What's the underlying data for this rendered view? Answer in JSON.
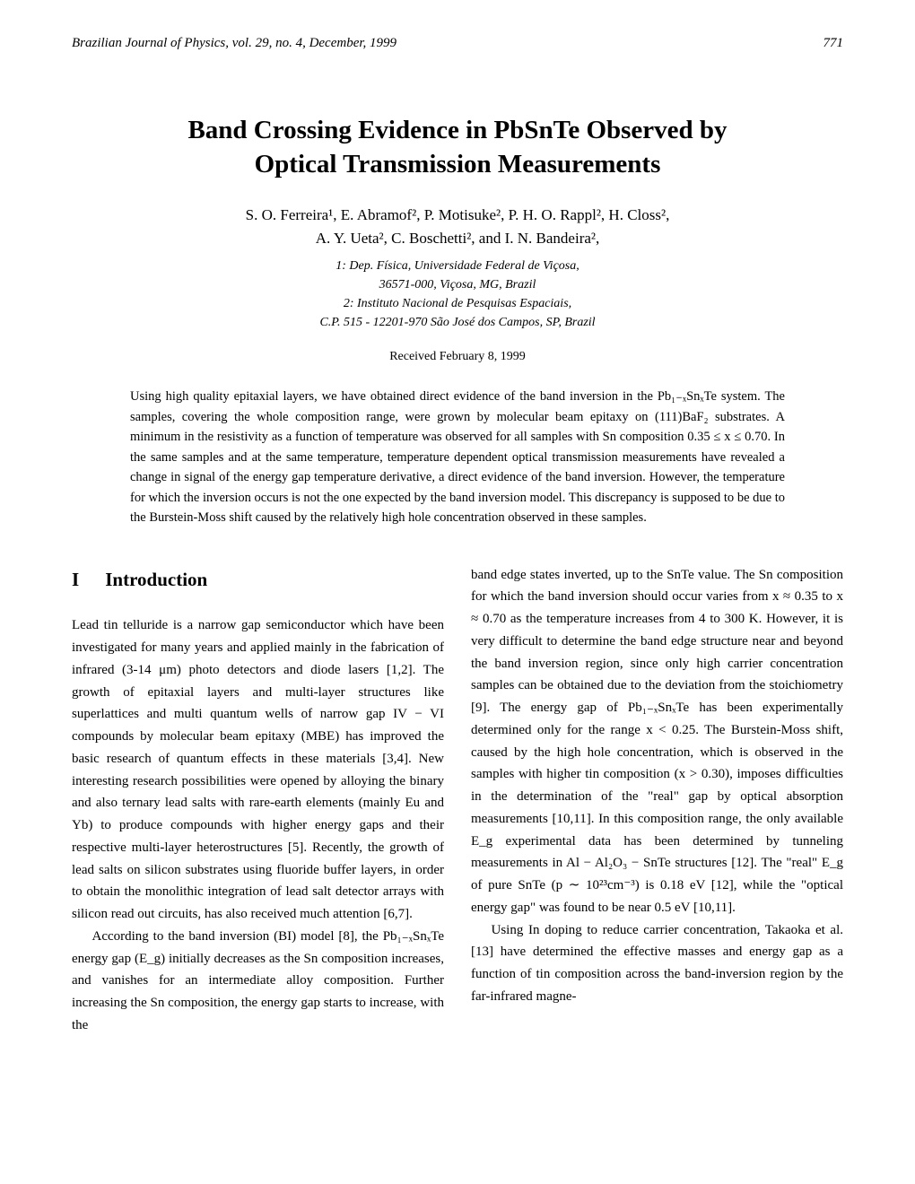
{
  "header": {
    "journal": "Brazilian Journal of Physics, vol. 29, no. 4, December, 1999",
    "page": "771"
  },
  "title_line1": "Band Crossing Evidence in PbSnTe Observed by",
  "title_line2": "Optical Transmission Measurements",
  "authors_line1": "S. O. Ferreira¹, E. Abramof², P. Motisuke², P. H. O. Rappl², H. Closs²,",
  "authors_line2": "A. Y. Ueta², C. Boschetti², and I. N. Bandeira²,",
  "aff1": "1: Dep. Física, Universidade Federal de Viçosa,",
  "aff2": "36571-000, Viçosa, MG, Brazil",
  "aff3": "2: Instituto Nacional de Pesquisas Espaciais,",
  "aff4": "C.P. 515 - 12201-970 São José dos Campos, SP, Brazil",
  "received": "Received February 8, 1999",
  "abstract": "Using high quality epitaxial layers, we have obtained direct evidence of the band inversion in the Pb₁₋ₓSnₓTe system. The samples, covering the whole composition range, were grown by molecular beam epitaxy on (111)BaF₂ substrates. A minimum in the resistivity as a function of temperature was observed for all samples with Sn composition 0.35 ≤ x ≤ 0.70. In the same samples and at the same temperature, temperature dependent optical transmission measurements have revealed a change in signal of the energy gap temperature derivative, a direct evidence of the band inversion. However, the temperature for which the inversion occurs is not the one expected by the band inversion model. This discrepancy is supposed to be due to the Burstein-Moss shift caused by the relatively high hole concentration observed in these samples.",
  "section": {
    "num": "I",
    "title": "Introduction"
  },
  "col1_p1": "Lead tin telluride is a narrow gap semiconductor which have been investigated for many years and applied mainly in the fabrication of infrared (3-14 μm) photo detectors and diode lasers [1,2]. The growth of epitaxial layers and multi-layer structures like superlattices and multi quantum wells of narrow gap IV − VI compounds by molecular beam epitaxy (MBE) has improved the basic research of quantum effects in these materials [3,4]. New interesting research possibilities were opened by alloying the binary and also ternary lead salts with rare-earth elements (mainly Eu and Yb) to produce compounds with higher energy gaps and their respective multi-layer heterostructures [5]. Recently, the growth of lead salts on silicon substrates using fluoride buffer layers, in order to obtain the monolithic integration of lead salt detector arrays with silicon read out circuits, has also received much attention [6,7].",
  "col1_p2": "According to the band inversion (BI) model [8], the Pb₁₋ₓSnₓTe energy gap (E_g) initially decreases as the Sn composition increases, and vanishes for an intermediate alloy composition. Further increasing the Sn composition, the energy gap starts to increase, with the",
  "col2_p1": "band edge states inverted, up to the SnTe value. The Sn composition for which the band inversion should occur varies from x ≈ 0.35 to x ≈ 0.70 as the temperature increases from 4 to 300 K. However, it is very difficult to determine the band edge structure near and beyond the band inversion region, since only high carrier concentration samples can be obtained due to the deviation from the stoichiometry [9]. The energy gap of Pb₁₋ₓSnₓTe has been experimentally determined only for the range x < 0.25. The Burstein-Moss shift, caused by the high hole concentration, which is observed in the samples with higher tin composition (x > 0.30), imposes difficulties in the determination of the \"real\" gap by optical absorption measurements [10,11]. In this composition range, the only available E_g experimental data has been determined by tunneling measurements in Al − Al₂O₃ − SnTe structures [12]. The \"real\" E_g of pure SnTe (p ∼ 10²³cm⁻³) is 0.18 eV [12], while the \"optical energy gap\" was found to be near 0.5 eV [10,11].",
  "col2_p2": "Using In doping to reduce carrier concentration, Takaoka et al. [13] have determined the effective masses and energy gap as a function of tin composition across the band-inversion region by the far-infrared magne-"
}
